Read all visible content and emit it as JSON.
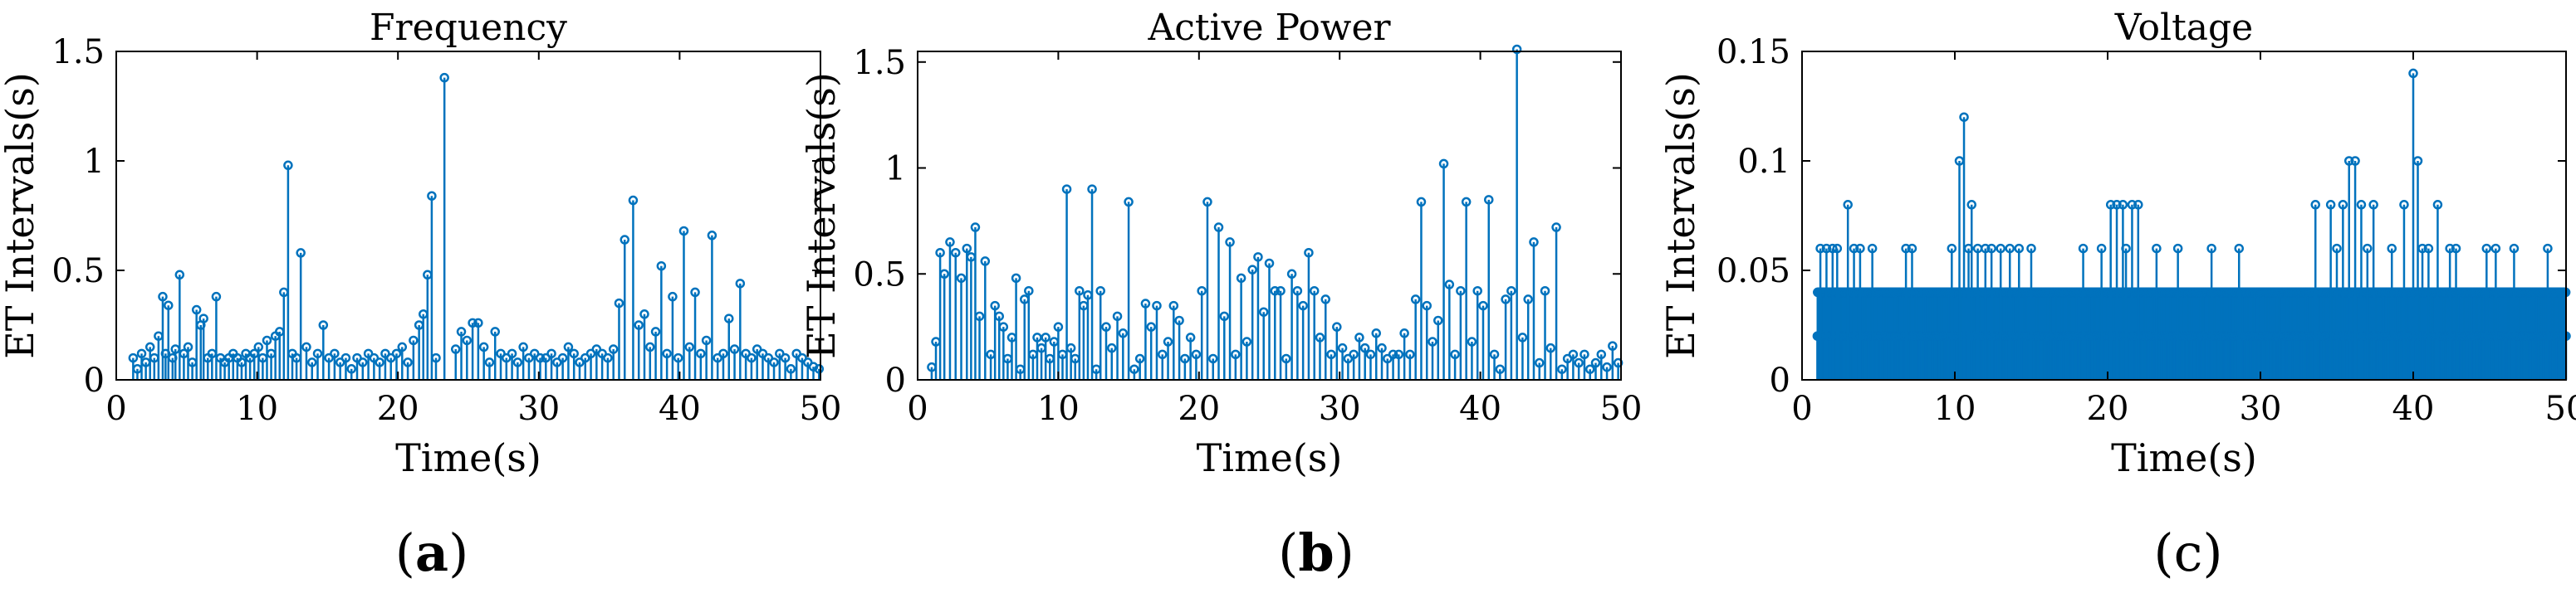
{
  "captions": [
    "a",
    "b",
    "c"
  ],
  "chart_data": [
    {
      "type": "stem",
      "title": "Frequency",
      "xlabel": "Time(s)",
      "ylabel": "ET Intervals(s)",
      "xlim": [
        0,
        50
      ],
      "ylim": [
        0,
        1.5
      ],
      "xticks": [
        0,
        10,
        20,
        30,
        40,
        50
      ],
      "yticks": [
        0,
        0.5,
        1,
        1.5
      ],
      "ytick_labels": [
        "0",
        "0.5",
        "1",
        "1.5"
      ],
      "color": "#0072BD",
      "x": [
        1.2,
        1.5,
        1.8,
        2.1,
        2.4,
        2.7,
        3.0,
        3.3,
        3.5,
        3.7,
        4.0,
        4.2,
        4.5,
        4.8,
        5.1,
        5.4,
        5.7,
        6.0,
        6.2,
        6.5,
        6.8,
        7.1,
        7.4,
        7.7,
        8.0,
        8.3,
        8.6,
        8.9,
        9.2,
        9.5,
        9.8,
        10.1,
        10.4,
        10.7,
        11.0,
        11.3,
        11.6,
        11.9,
        12.2,
        12.5,
        12.8,
        13.1,
        13.5,
        13.9,
        14.3,
        14.7,
        15.1,
        15.5,
        15.9,
        16.3,
        16.7,
        17.1,
        17.5,
        17.9,
        18.3,
        18.7,
        19.1,
        19.5,
        19.9,
        20.3,
        20.7,
        21.1,
        21.5,
        21.8,
        22.1,
        22.4,
        22.7,
        23.3,
        24.1,
        24.5,
        24.9,
        25.3,
        25.7,
        26.1,
        26.5,
        26.9,
        27.3,
        27.7,
        28.1,
        28.5,
        28.9,
        29.3,
        29.7,
        30.1,
        30.5,
        30.9,
        31.3,
        31.7,
        32.1,
        32.5,
        32.9,
        33.3,
        33.7,
        34.1,
        34.5,
        34.9,
        35.3,
        35.7,
        36.1,
        36.7,
        37.1,
        37.5,
        37.9,
        38.3,
        38.7,
        39.1,
        39.5,
        39.9,
        40.3,
        40.7,
        41.1,
        41.5,
        41.9,
        42.3,
        42.7,
        43.1,
        43.5,
        43.9,
        44.3,
        44.7,
        45.1,
        45.5,
        45.9,
        46.3,
        46.7,
        47.1,
        47.5,
        47.9,
        48.3,
        48.7,
        49.1,
        49.5,
        49.9
      ],
      "y": [
        0.1,
        0.05,
        0.12,
        0.08,
        0.15,
        0.1,
        0.2,
        0.38,
        0.12,
        0.34,
        0.1,
        0.14,
        0.48,
        0.12,
        0.15,
        0.08,
        0.32,
        0.25,
        0.28,
        0.1,
        0.12,
        0.38,
        0.1,
        0.08,
        0.1,
        0.12,
        0.1,
        0.08,
        0.12,
        0.1,
        0.12,
        0.15,
        0.1,
        0.18,
        0.12,
        0.2,
        0.22,
        0.4,
        0.98,
        0.12,
        0.1,
        0.58,
        0.15,
        0.08,
        0.12,
        0.25,
        0.1,
        0.12,
        0.08,
        0.1,
        0.05,
        0.1,
        0.08,
        0.12,
        0.1,
        0.08,
        0.12,
        0.1,
        0.12,
        0.15,
        0.08,
        0.18,
        0.25,
        0.3,
        0.48,
        0.84,
        0.1,
        1.38,
        0.14,
        0.22,
        0.18,
        0.26,
        0.26,
        0.15,
        0.08,
        0.22,
        0.12,
        0.1,
        0.12,
        0.08,
        0.15,
        0.1,
        0.12,
        0.1,
        0.1,
        0.12,
        0.08,
        0.1,
        0.15,
        0.12,
        0.08,
        0.1,
        0.12,
        0.14,
        0.12,
        0.1,
        0.14,
        0.35,
        0.64,
        0.82,
        0.25,
        0.3,
        0.15,
        0.22,
        0.52,
        0.12,
        0.38,
        0.1,
        0.68,
        0.15,
        0.4,
        0.12,
        0.18,
        0.66,
        0.1,
        0.12,
        0.28,
        0.14,
        0.44,
        0.12,
        0.1,
        0.14,
        0.12,
        0.1,
        0.08,
        0.12,
        0.1,
        0.05,
        0.12,
        0.1,
        0.08,
        0.06,
        0.05
      ]
    },
    {
      "type": "stem",
      "title": "Active Power",
      "xlabel": "Time(s)",
      "ylabel": "ET Intervals(s)",
      "xlim": [
        0,
        50
      ],
      "ylim": [
        0,
        1.55
      ],
      "xticks": [
        0,
        10,
        20,
        30,
        40,
        50
      ],
      "yticks": [
        0,
        0.5,
        1,
        1.5
      ],
      "ytick_labels": [
        "0",
        "0.5",
        "1",
        "1.5"
      ],
      "color": "#0072BD",
      "x": [
        1.0,
        1.3,
        1.6,
        1.9,
        2.3,
        2.7,
        3.1,
        3.5,
        3.8,
        4.1,
        4.4,
        4.8,
        5.2,
        5.5,
        5.8,
        6.1,
        6.4,
        6.7,
        7.0,
        7.3,
        7.6,
        7.9,
        8.2,
        8.5,
        8.8,
        9.1,
        9.4,
        9.7,
        10.0,
        10.3,
        10.6,
        10.9,
        11.2,
        11.5,
        11.8,
        12.1,
        12.4,
        12.7,
        13.0,
        13.4,
        13.8,
        14.2,
        14.6,
        15.0,
        15.4,
        15.8,
        16.2,
        16.6,
        17.0,
        17.4,
        17.8,
        18.2,
        18.6,
        19.0,
        19.4,
        19.8,
        20.2,
        20.6,
        21.0,
        21.4,
        21.8,
        22.2,
        22.6,
        23.0,
        23.4,
        23.8,
        24.2,
        24.6,
        25.0,
        25.4,
        25.8,
        26.2,
        26.6,
        27.0,
        27.4,
        27.8,
        28.2,
        28.6,
        29.0,
        29.4,
        29.8,
        30.2,
        30.6,
        31.0,
        31.4,
        31.8,
        32.2,
        32.6,
        33.0,
        33.4,
        33.8,
        34.2,
        34.6,
        35.0,
        35.4,
        35.8,
        36.2,
        36.6,
        37.0,
        37.4,
        37.8,
        38.2,
        38.6,
        39.0,
        39.4,
        39.8,
        40.2,
        40.6,
        41.0,
        41.4,
        41.8,
        42.2,
        42.6,
        43.0,
        43.4,
        43.8,
        44.2,
        44.6,
        45.0,
        45.4,
        45.8,
        46.2,
        46.6,
        47.0,
        47.4,
        47.8,
        48.2,
        48.6,
        49.0,
        49.4,
        49.8
      ],
      "y": [
        0.06,
        0.18,
        0.6,
        0.5,
        0.65,
        0.6,
        0.48,
        0.62,
        0.58,
        0.72,
        0.3,
        0.56,
        0.12,
        0.35,
        0.3,
        0.25,
        0.1,
        0.2,
        0.48,
        0.05,
        0.38,
        0.42,
        0.12,
        0.2,
        0.15,
        0.2,
        0.1,
        0.18,
        0.25,
        0.12,
        0.9,
        0.15,
        0.1,
        0.42,
        0.35,
        0.4,
        0.9,
        0.05,
        0.42,
        0.25,
        0.15,
        0.3,
        0.22,
        0.84,
        0.05,
        0.1,
        0.36,
        0.25,
        0.35,
        0.12,
        0.18,
        0.35,
        0.28,
        0.1,
        0.2,
        0.12,
        0.42,
        0.84,
        0.1,
        0.72,
        0.3,
        0.65,
        0.12,
        0.48,
        0.18,
        0.52,
        0.58,
        0.32,
        0.55,
        0.42,
        0.42,
        0.1,
        0.5,
        0.42,
        0.35,
        0.6,
        0.42,
        0.2,
        0.38,
        0.12,
        0.25,
        0.15,
        0.1,
        0.12,
        0.2,
        0.15,
        0.12,
        0.22,
        0.15,
        0.1,
        0.12,
        0.12,
        0.22,
        0.12,
        0.38,
        0.84,
        0.35,
        0.18,
        0.28,
        1.02,
        0.45,
        0.12,
        0.42,
        0.84,
        0.18,
        0.42,
        0.35,
        0.85,
        0.12,
        0.05,
        0.38,
        0.42,
        1.56,
        0.2,
        0.38,
        0.65,
        0.08,
        0.42,
        0.15,
        0.72,
        0.05,
        0.1,
        0.12,
        0.08,
        0.12,
        0.05,
        0.08,
        0.12,
        0.06,
        0.16,
        0.08
      ]
    },
    {
      "type": "stem",
      "title": "Voltage",
      "xlabel": "Time(s)",
      "ylabel": "ET Intervals(s)",
      "xlim": [
        0,
        50
      ],
      "ylim": [
        0,
        0.15
      ],
      "xticks": [
        0,
        10,
        20,
        30,
        40,
        50
      ],
      "yticks": [
        0,
        0.05,
        0.1,
        0.15
      ],
      "ytick_labels": [
        "0",
        "0.05",
        "0.1",
        "0.15"
      ],
      "color": "#0072BD",
      "sample_step": 0.02,
      "x_start": 1.0,
      "x_end": 50.0,
      "baseline_levels": [
        0.02,
        0.04
      ],
      "peaks": {
        "x": [
          1.2,
          1.6,
          2.0,
          2.3,
          3.0,
          3.4,
          3.8,
          4.6,
          6.8,
          7.2,
          9.8,
          10.3,
          10.6,
          10.9,
          11.1,
          11.5,
          12.0,
          12.4,
          13.0,
          13.6,
          14.2,
          15.0,
          18.4,
          19.6,
          20.2,
          20.6,
          21.0,
          21.2,
          21.6,
          22.0,
          23.2,
          24.6,
          26.8,
          28.6,
          33.6,
          34.6,
          35.0,
          35.4,
          35.8,
          36.2,
          36.6,
          37.0,
          37.4,
          38.6,
          39.4,
          40.0,
          40.3,
          40.6,
          41.0,
          41.6,
          42.4,
          42.8,
          44.8,
          45.4,
          46.6,
          48.8,
          49.2
        ],
        "y": [
          0.06,
          0.06,
          0.06,
          0.06,
          0.08,
          0.06,
          0.06,
          0.06,
          0.06,
          0.06,
          0.06,
          0.1,
          0.12,
          0.06,
          0.08,
          0.06,
          0.06,
          0.06,
          0.06,
          0.06,
          0.06,
          0.06,
          0.06,
          0.06,
          0.08,
          0.08,
          0.08,
          0.06,
          0.08,
          0.08,
          0.06,
          0.06,
          0.06,
          0.06,
          0.08,
          0.08,
          0.06,
          0.08,
          0.1,
          0.1,
          0.08,
          0.06,
          0.08,
          0.06,
          0.08,
          0.14,
          0.1,
          0.06,
          0.06,
          0.08,
          0.06,
          0.06,
          0.06,
          0.06,
          0.06,
          0.06,
          0.04
        ]
      }
    }
  ]
}
